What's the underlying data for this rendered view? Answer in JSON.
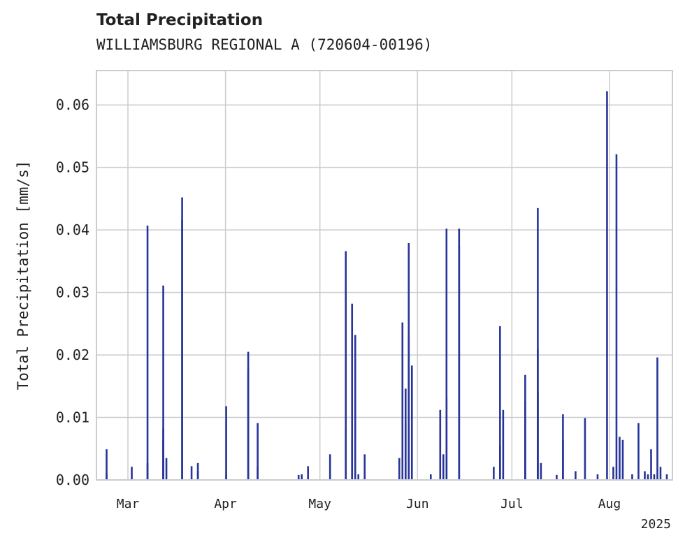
{
  "chart_data": {
    "type": "bar",
    "title": "Total Precipitation",
    "subtitle": "WILLIAMSBURG REGIONAL A (720604-00196)",
    "ylabel": "Total Precipitation [mm/s]",
    "xlabel": "",
    "x_year_label": "2025",
    "ylim": [
      0,
      0.0655
    ],
    "xlim": [
      "2025-02-19",
      "2025-08-21"
    ],
    "grid": true,
    "bar_color": "#27349a",
    "y_ticks": [
      {
        "value": 0.0,
        "label": "0.00"
      },
      {
        "value": 0.01,
        "label": "0.01"
      },
      {
        "value": 0.02,
        "label": "0.02"
      },
      {
        "value": 0.03,
        "label": "0.03"
      },
      {
        "value": 0.04,
        "label": "0.04"
      },
      {
        "value": 0.05,
        "label": "0.05"
      },
      {
        "value": 0.06,
        "label": "0.06"
      }
    ],
    "x_ticks": [
      {
        "date": "2025-03-01",
        "label": "Mar"
      },
      {
        "date": "2025-04-01",
        "label": "Apr"
      },
      {
        "date": "2025-05-01",
        "label": "May"
      },
      {
        "date": "2025-06-01",
        "label": "Jun"
      },
      {
        "date": "2025-07-01",
        "label": "Jul"
      },
      {
        "date": "2025-08-01",
        "label": "Aug"
      }
    ],
    "series": [
      {
        "x": [
          "2025-02-22",
          "2025-02-22",
          "2025-03-02",
          "2025-03-07",
          "2025-03-07",
          "2025-03-12",
          "2025-03-12",
          "2025-03-12",
          "2025-03-13",
          "2025-03-18",
          "2025-03-18",
          "2025-03-21",
          "2025-03-23",
          "2025-03-23",
          "2025-04-01",
          "2025-04-01",
          "2025-04-08",
          "2025-04-08",
          "2025-04-11",
          "2025-04-11",
          "2025-04-24",
          "2025-04-25",
          "2025-04-27",
          "2025-05-04",
          "2025-05-09",
          "2025-05-09",
          "2025-05-11",
          "2025-05-11",
          "2025-05-12",
          "2025-05-12",
          "2025-05-13",
          "2025-05-15",
          "2025-05-26",
          "2025-05-27",
          "2025-05-28",
          "2025-05-28",
          "2025-05-29",
          "2025-05-29",
          "2025-05-30",
          "2025-06-05",
          "2025-06-08",
          "2025-06-09",
          "2025-06-10",
          "2025-06-10",
          "2025-06-14",
          "2025-06-14",
          "2025-06-25",
          "2025-06-27",
          "2025-06-27",
          "2025-06-28",
          "2025-07-05",
          "2025-07-05",
          "2025-07-05",
          "2025-07-09",
          "2025-07-09",
          "2025-07-09",
          "2025-07-10",
          "2025-07-15",
          "2025-07-17",
          "2025-07-17",
          "2025-07-21",
          "2025-07-24",
          "2025-07-28",
          "2025-07-31",
          "2025-08-02",
          "2025-08-03",
          "2025-08-04",
          "2025-08-05",
          "2025-08-08",
          "2025-08-10",
          "2025-08-12",
          "2025-08-13",
          "2025-08-14",
          "2025-08-15",
          "2025-08-16",
          "2025-08-17",
          "2025-08-19"
        ],
        "values": [
          0.0049,
          0.0009,
          0.0021,
          0.0027,
          0.0407,
          0.0064,
          0.0311,
          0.0082,
          0.0035,
          0.0452,
          0.0416,
          0.0022,
          0.0027,
          0.0014,
          0.0008,
          0.0118,
          0.0177,
          0.0205,
          0.0091,
          0.0021,
          0.0008,
          0.0009,
          0.0022,
          0.0041,
          0.0082,
          0.0366,
          0.0065,
          0.0282,
          0.0126,
          0.0232,
          0.0009,
          0.0041,
          0.0035,
          0.0252,
          0.0146,
          0.0091,
          0.0379,
          0.0232,
          0.0183,
          0.0009,
          0.0112,
          0.0041,
          0.0132,
          0.0402,
          0.0374,
          0.0402,
          0.0021,
          0.0246,
          0.0055,
          0.0112,
          0.0126,
          0.0168,
          0.0065,
          0.0141,
          0.0435,
          0.0209,
          0.0027,
          0.0008,
          0.0064,
          0.0105,
          0.0014,
          0.0099,
          0.0009,
          0.0622,
          0.0021,
          0.0521,
          0.0069,
          0.0064,
          0.0009,
          0.0091,
          0.0014,
          0.0009,
          0.0049,
          0.0009,
          0.0196,
          0.0021,
          0.0009
        ]
      }
    ]
  }
}
